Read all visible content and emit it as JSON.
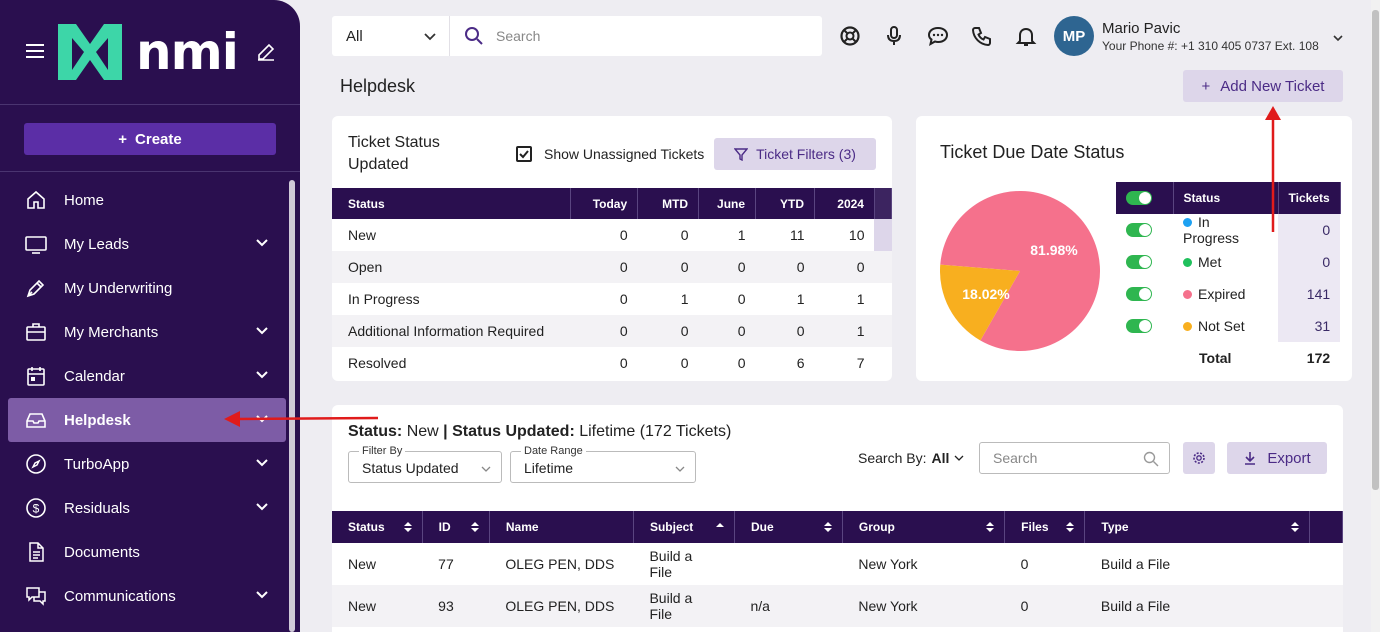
{
  "brand": {
    "name": "nmi",
    "accent": "#2a0f4f",
    "logo_color": "#3dd6a8"
  },
  "sidebar": {
    "create_label": "Create",
    "items": [
      {
        "label": "Home",
        "icon": "home-icon",
        "chevron": false
      },
      {
        "label": "My Leads",
        "icon": "monitor-icon",
        "chevron": true
      },
      {
        "label": "My Underwriting",
        "icon": "pen-icon",
        "chevron": false
      },
      {
        "label": "My Merchants",
        "icon": "briefcase-icon",
        "chevron": true
      },
      {
        "label": "Calendar",
        "icon": "calendar-icon",
        "chevron": true
      },
      {
        "label": "Helpdesk",
        "icon": "inbox-icon",
        "chevron": true,
        "active": true
      },
      {
        "label": "TurboApp",
        "icon": "compass-icon",
        "chevron": true
      },
      {
        "label": "Residuals",
        "icon": "dollar-icon",
        "chevron": true
      },
      {
        "label": "Documents",
        "icon": "document-icon",
        "chevron": false
      },
      {
        "label": "Communications",
        "icon": "chat-icon",
        "chevron": true
      }
    ]
  },
  "topbar": {
    "scope": "All",
    "search_placeholder": "Search",
    "user_initials": "MP",
    "user_name": "Mario Pavic",
    "user_phone": "Your Phone #: +1 310 405 0737 Ext. 108"
  },
  "page": {
    "title": "Helpdesk",
    "add_ticket": "Add New Ticket"
  },
  "status_card": {
    "title": "Ticket Status Updated",
    "show_unassigned": "Show Unassigned Tickets",
    "filters": "Ticket Filters (3)",
    "columns": [
      "Status",
      "Today",
      "MTD",
      "June",
      "YTD",
      "2024"
    ],
    "rows": [
      [
        "New",
        "0",
        "0",
        "1",
        "11",
        "10"
      ],
      [
        "Open",
        "0",
        "0",
        "0",
        "0",
        "0"
      ],
      [
        "In Progress",
        "0",
        "1",
        "0",
        "1",
        "1"
      ],
      [
        "Additional Information Required",
        "0",
        "0",
        "0",
        "0",
        "1"
      ],
      [
        "Resolved",
        "0",
        "0",
        "0",
        "6",
        "7"
      ]
    ]
  },
  "due_card": {
    "title": "Ticket Due Date Status",
    "pie_labels": [
      "81.98%",
      "18.02%"
    ],
    "chart_data": {
      "type": "pie",
      "slices": [
        {
          "label": "Expired",
          "value": 81.98,
          "color": "#f5718c"
        },
        {
          "label": "Not Set",
          "value": 18.02,
          "color": "#f8af1f"
        }
      ]
    },
    "columns": [
      "Status",
      "Tickets"
    ],
    "rows": [
      {
        "status": "In Progress",
        "count": "0",
        "color": "#1da1f2"
      },
      {
        "status": "Met",
        "count": "0",
        "color": "#20c05c"
      },
      {
        "status": "Expired",
        "count": "141",
        "color": "#f5718c"
      },
      {
        "status": "Not Set",
        "count": "31",
        "color": "#f8af1f"
      }
    ],
    "total_label": "Total",
    "total": "172"
  },
  "tickets": {
    "heading": {
      "status_key": "Status:",
      "status_val": "New",
      "updated_key": "Status Updated:",
      "updated_val": "Lifetime (172 Tickets)"
    },
    "filter_by_label": "Filter By",
    "filter_by_value": "Status Updated",
    "date_range_label": "Date Range",
    "date_range_value": "Lifetime",
    "search_by": "Search By:",
    "search_by_value": "All",
    "search_placeholder": "Search",
    "export": "Export",
    "columns": [
      "Status",
      "ID",
      "Name",
      "Subject",
      "Due",
      "Group",
      "Files",
      "Type"
    ],
    "rows": [
      [
        "New",
        "77",
        "OLEG PEN, DDS",
        "Build a File",
        "",
        "New York",
        "0",
        "Build a File"
      ],
      [
        "New",
        "93",
        "OLEG PEN, DDS",
        "Build a File",
        "n/a",
        "New York",
        "0",
        "Build a File"
      ]
    ]
  }
}
